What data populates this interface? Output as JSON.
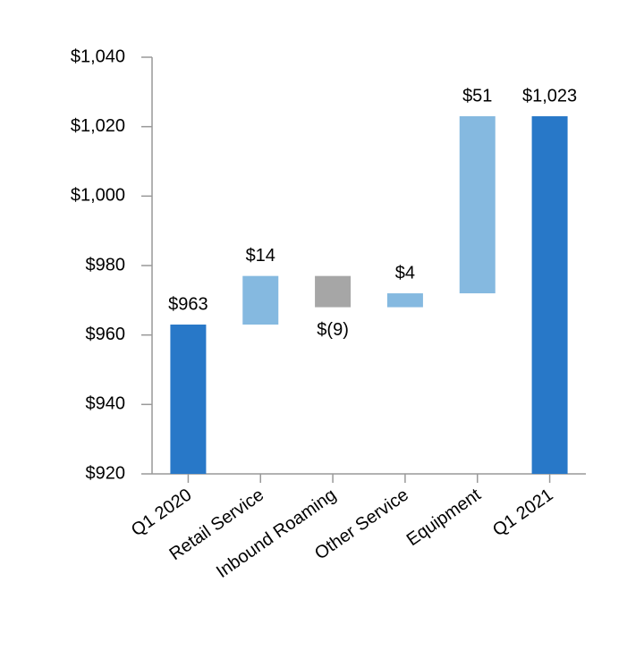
{
  "chart_data": {
    "type": "waterfall",
    "categories": [
      "Q1 2020",
      "Retail Service",
      "Inbound Roaming",
      "Other Service",
      "Equipment",
      "Q1 2021"
    ],
    "values": [
      963,
      14,
      -9,
      4,
      51,
      1023
    ],
    "value_labels": [
      "$963",
      "$14",
      "$(9)",
      "$4",
      "$51",
      "$1,023"
    ],
    "totals": [
      true,
      false,
      false,
      false,
      false,
      true
    ],
    "colors": [
      "#2878c8",
      "#85b9e0",
      "#a6a6a6",
      "#85b9e0",
      "#85b9e0",
      "#2878c8"
    ],
    "ylim": [
      920,
      1040
    ],
    "yticks": [
      {
        "value": 920,
        "label": "$920"
      },
      {
        "value": 940,
        "label": "$940"
      },
      {
        "value": 960,
        "label": "$960"
      },
      {
        "value": 980,
        "label": "$980"
      },
      {
        "value": 1000,
        "label": "$1,000"
      },
      {
        "value": 1020,
        "label": "$1,020"
      },
      {
        "value": 1040,
        "label": "$1,040"
      }
    ]
  }
}
